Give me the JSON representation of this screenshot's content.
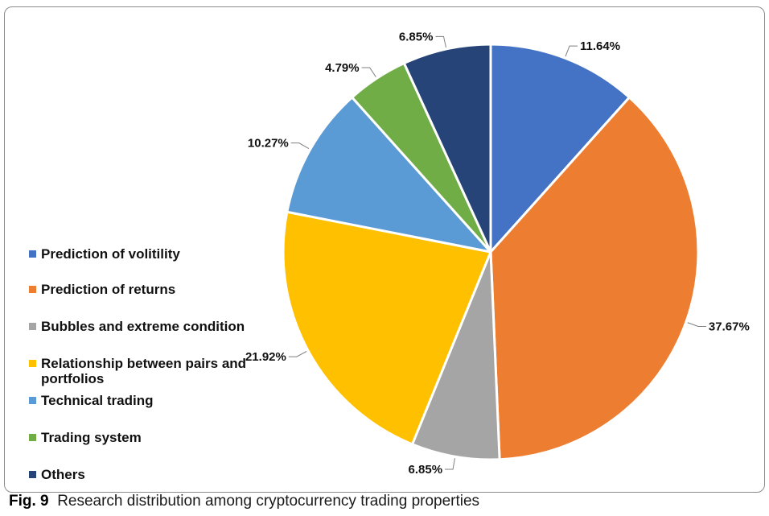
{
  "caption": {
    "label": "Fig. 9",
    "text": "Research distribution among cryptocurrency trading properties"
  },
  "chart_data": {
    "type": "pie",
    "title": "",
    "start_angle_deg": 0,
    "direction": "clockwise",
    "legend_position": "left",
    "slices": [
      {
        "label": "Prediction of volitility",
        "value": 11.64,
        "display": "11.64%",
        "color": "#4472c4"
      },
      {
        "label": "Prediction of returns",
        "value": 37.67,
        "display": "37.67%",
        "color": "#ed7d31"
      },
      {
        "label": "Bubbles and extreme condition",
        "value": 6.85,
        "display": "6.85%",
        "color": "#a5a5a5"
      },
      {
        "label": "Relationship between pairs and portfolios",
        "value": 21.92,
        "display": "21.92%",
        "color": "#ffc000"
      },
      {
        "label": "Technical trading",
        "value": 10.27,
        "display": "10.27%",
        "color": "#5b9bd5"
      },
      {
        "label": "Trading system",
        "value": 4.79,
        "display": "4.79%",
        "color": "#70ad47"
      },
      {
        "label": "Others",
        "value": 6.85,
        "display": "6.85%",
        "color": "#264478"
      }
    ]
  }
}
